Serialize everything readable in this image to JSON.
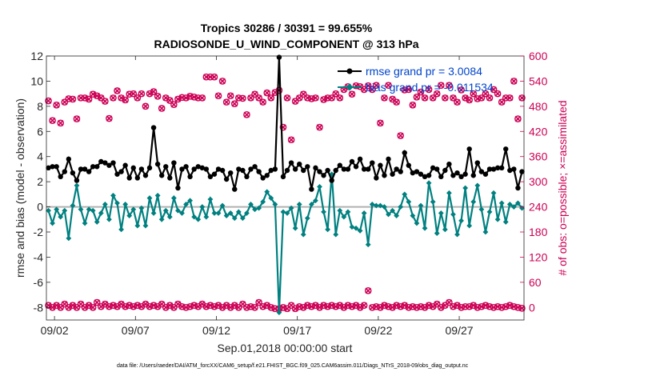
{
  "chart_data": {
    "type": "line",
    "title": "Tropics 30286 / 30391 = 99.655%",
    "subtitle": "RADIOSONDE_U_WIND_COMPONENT @ 313 hPa",
    "xlabel": "Sep.01,2018 00:00:00 start",
    "ylabel": "rmse and bias (model - observation)",
    "y2label": "# of obs: o=possible; ×=assimilated",
    "footer": "data file: /Users/raeder/DAI/ATM_forcXX/CAM6_setup/f.e21.FHIST_BGC.f09_025.CAM6assim.011/Diags_NTrS_2018-09/obs_diag_output.nc",
    "xlim": [
      1.5,
      31.0
    ],
    "ylim": [
      -9,
      12
    ],
    "y2lim": [
      -30,
      600
    ],
    "x_ticks": [
      2,
      7,
      12,
      17,
      22,
      27
    ],
    "x_tick_labels": [
      "09/02",
      "09/07",
      "09/12",
      "09/17",
      "09/22",
      "09/27"
    ],
    "y_ticks": [
      -8,
      -6,
      -4,
      -2,
      0,
      2,
      4,
      6,
      8,
      10,
      12
    ],
    "y_tick_labels": [
      "-8",
      "-6",
      "-4",
      "-2",
      "0",
      "2",
      "4",
      "6",
      "8",
      "10",
      "12"
    ],
    "y2_ticks": [
      0,
      60,
      120,
      180,
      240,
      300,
      360,
      420,
      480,
      540,
      600
    ],
    "y2_tick_labels": [
      "0",
      "60",
      "120",
      "180",
      "240",
      "300",
      "360",
      "420",
      "480",
      "540",
      "600"
    ],
    "x": [
      1.625,
      1.875,
      2.125,
      2.375,
      2.625,
      2.875,
      3.125,
      3.375,
      3.625,
      3.875,
      4.125,
      4.375,
      4.625,
      4.875,
      5.125,
      5.375,
      5.625,
      5.875,
      6.125,
      6.375,
      6.625,
      6.875,
      7.125,
      7.375,
      7.625,
      7.875,
      8.125,
      8.375,
      8.625,
      8.875,
      9.125,
      9.375,
      9.625,
      9.875,
      10.125,
      10.375,
      10.625,
      10.875,
      11.125,
      11.375,
      11.625,
      11.875,
      12.125,
      12.375,
      12.625,
      12.875,
      13.125,
      13.375,
      13.625,
      13.875,
      14.125,
      14.375,
      14.625,
      14.875,
      15.125,
      15.375,
      15.625,
      15.875,
      16.125,
      16.375,
      16.625,
      16.875,
      17.125,
      17.375,
      17.625,
      17.875,
      18.125,
      18.375,
      18.625,
      18.875,
      19.125,
      19.375,
      19.625,
      19.875,
      20.125,
      20.375,
      20.625,
      20.875,
      21.125,
      21.375,
      21.625,
      21.875,
      22.125,
      22.375,
      22.625,
      22.875,
      23.125,
      23.375,
      23.625,
      23.875,
      24.125,
      24.375,
      24.625,
      24.875,
      25.125,
      25.375,
      25.625,
      25.875,
      26.125,
      26.375,
      26.625,
      26.875,
      27.125,
      27.375,
      27.625,
      27.875,
      28.125,
      28.375,
      28.625,
      28.875,
      29.125,
      29.375,
      29.625,
      29.875,
      30.125,
      30.375,
      30.625,
      30.875
    ],
    "series": [
      {
        "name": "rmse grand pr = 3.0084",
        "axis": "left",
        "color": "#000000",
        "marker": "circle",
        "values": [
          3.1,
          3.2,
          3.2,
          2.4,
          2.8,
          3.8,
          2.7,
          2.1,
          3.0,
          3.0,
          2.8,
          3.2,
          3.2,
          3.6,
          3.5,
          3.3,
          3.5,
          2.6,
          2.8,
          3.3,
          2.3,
          3.1,
          2.3,
          3.0,
          2.5,
          3.1,
          6.3,
          3.4,
          2.5,
          3.2,
          2.3,
          3.5,
          1.5,
          3.0,
          3.2,
          2.4,
          3.0,
          3.2,
          3.1,
          3.0,
          2.4,
          2.6,
          3.0,
          2.9,
          2.2,
          2.7,
          1.4,
          3.0,
          2.9,
          2.4,
          3.0,
          3.2,
          2.8,
          2.3,
          2.5,
          2.9,
          3.0,
          11.9,
          2.4,
          2.9,
          3.5,
          3.0,
          3.4,
          2.9,
          3.2,
          1.4,
          3.1,
          2.8,
          2.5,
          2.9,
          2.1,
          2.9,
          3.3,
          3.0,
          3.0,
          3.6,
          3.2,
          3.8,
          3.0,
          3.0,
          3.5,
          2.3,
          3.3,
          2.5,
          3.8,
          2.6,
          3.0,
          2.8,
          4.3,
          3.3,
          2.7,
          2.8,
          2.6,
          2.4,
          2.5,
          3.1,
          3.0,
          2.4,
          2.9,
          3.4,
          2.5,
          2.7,
          2.4,
          2.6,
          4.6,
          2.5,
          3.5,
          2.8,
          2.6,
          3.0,
          3.0,
          3.1,
          3.1,
          4.6,
          2.9,
          3.0,
          1.5,
          2.8
        ]
      },
      {
        "name": "bias grand pr = -0.011534",
        "axis": "left",
        "color": "#008080",
        "marker": "diamond",
        "values": [
          -0.3,
          -1.3,
          -0.2,
          -0.8,
          -0.3,
          -2.5,
          0.1,
          1.7,
          -0.2,
          -1.3,
          -0.2,
          -0.3,
          -1.2,
          -0.5,
          0.2,
          -1.0,
          0.9,
          0.3,
          -1.8,
          0.2,
          -0.7,
          -0.2,
          -1.5,
          -0.1,
          -1.5,
          0.7,
          -0.5,
          0.9,
          -1.0,
          -0.3,
          -0.8,
          0.7,
          -0.3,
          -0.5,
          0.2,
          0.5,
          -0.8,
          -1.0,
          0.0,
          -0.8,
          0.6,
          -0.5,
          -0.5,
          0.1,
          -0.7,
          -0.5,
          -0.9,
          -0.4,
          -0.9,
          -0.5,
          0.2,
          -0.2,
          -0.1,
          0.4,
          1.2,
          0.7,
          0.2,
          -8.4,
          -0.4,
          -0.5,
          -0.1,
          -1.7,
          0.2,
          -2.2,
          -0.9,
          0.2,
          0.5,
          1.6,
          -0.4,
          -1.8,
          2.6,
          -2.2,
          -0.3,
          -0.8,
          -0.4,
          -1.6,
          -1.7,
          -1.9,
          -0.5,
          -3.0,
          0.2,
          0.1,
          0.1,
          0.0,
          -0.6,
          -0.3,
          -0.7,
          0.0,
          1.0,
          0.4,
          -0.7,
          -1.3,
          0.1,
          -1.7,
          1.9,
          0.4,
          -2.1,
          -0.5,
          -1.8,
          1.1,
          -0.6,
          -2.2,
          -1.1,
          1.5,
          -1.5,
          0.4,
          1.7,
          -0.2,
          -2.0,
          -0.4,
          1.1,
          -1.0,
          0.3,
          -1.2,
          0.2,
          0.0,
          0.3,
          -0.1
        ]
      },
      {
        "name": "obs possible",
        "axis": "right",
        "color": "#cc0055",
        "marker": "circle-open",
        "values": [
          493,
          446,
          483,
          440,
          490,
          498,
          497,
          450,
          500,
          500,
          497,
          509,
          505,
          500,
          492,
          451,
          500,
          517,
          500,
          495,
          509,
          510,
          500,
          510,
          480,
          510,
          515,
          504,
          475,
          500,
          494,
          484,
          497,
          501,
          500,
          504,
          502,
          500,
          500,
          550,
          550,
          550,
          505,
          540,
          490,
          505,
          486,
          500,
          499,
          460,
          500,
          509,
          500,
          490,
          512,
          500,
          513,
          518,
          430,
          500,
          400,
          492,
          500,
          509,
          500,
          498,
          500,
          430,
          496,
          500,
          500,
          510,
          500,
          520,
          527,
          509,
          529,
          527,
          520,
          529,
          520,
          530,
          440,
          500,
          530,
          497,
          490,
          410,
          519,
          520,
          483,
          502,
          514,
          500,
          520,
          500,
          510,
          530,
          500,
          530,
          500,
          490,
          519,
          500,
          495,
          510,
          498,
          500,
          510,
          500,
          520,
          510,
          490,
          500,
          500,
          540,
          450,
          500
        ]
      },
      {
        "name": "obs assimilated",
        "axis": "right",
        "color": "#cc0055",
        "marker": "x",
        "values": [
          493,
          446,
          483,
          440,
          490,
          498,
          497,
          450,
          500,
          500,
          497,
          509,
          505,
          500,
          492,
          451,
          500,
          517,
          500,
          495,
          509,
          510,
          500,
          510,
          480,
          510,
          515,
          504,
          475,
          500,
          494,
          484,
          497,
          501,
          500,
          504,
          502,
          500,
          500,
          550,
          550,
          550,
          505,
          540,
          490,
          505,
          486,
          500,
          499,
          460,
          500,
          509,
          500,
          490,
          512,
          500,
          513,
          518,
          430,
          500,
          400,
          492,
          500,
          509,
          500,
          498,
          500,
          430,
          496,
          500,
          500,
          510,
          500,
          520,
          527,
          509,
          529,
          527,
          520,
          529,
          520,
          530,
          440,
          500,
          530,
          497,
          490,
          410,
          519,
          520,
          483,
          502,
          514,
          500,
          520,
          500,
          510,
          530,
          500,
          530,
          500,
          490,
          519,
          500,
          495,
          510,
          498,
          500,
          510,
          500,
          520,
          510,
          490,
          500,
          500,
          540,
          450,
          500
        ]
      }
    ],
    "obs_counts_low": [
      5,
      0,
      5,
      0,
      8,
      0,
      5,
      0,
      8,
      0,
      5,
      0,
      12,
      2,
      8,
      2,
      5,
      2,
      8,
      2,
      5,
      2,
      5,
      2,
      8,
      2,
      5,
      2,
      8,
      0,
      5,
      0,
      8,
      2,
      0,
      2,
      5,
      2,
      8,
      2,
      5,
      2,
      5,
      0,
      5,
      0,
      5,
      0,
      8,
      0,
      2,
      0,
      12,
      2,
      5,
      0,
      -3,
      -3,
      0,
      -3,
      5,
      -3,
      2,
      0,
      5,
      2,
      5,
      0,
      5,
      2,
      5,
      2,
      5,
      0,
      5,
      2,
      5,
      0,
      5,
      40,
      0,
      2,
      0,
      5,
      2,
      0,
      5,
      2,
      5,
      0,
      2,
      0,
      2,
      0,
      5,
      2,
      8,
      0,
      5,
      12,
      2,
      5,
      0,
      2,
      2,
      5,
      0,
      2,
      5,
      2,
      0,
      2,
      0,
      2,
      5,
      2,
      0,
      -2
    ]
  }
}
